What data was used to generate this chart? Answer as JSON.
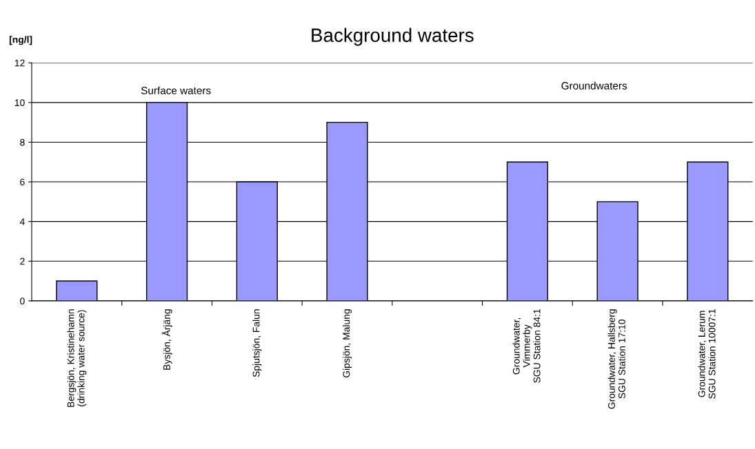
{
  "chart_data": {
    "type": "bar",
    "title": "Background waters",
    "ylabel": "[ng/l]",
    "categories": [
      "Bergsjön, Kristinehamn\n(drinking water source)",
      "Bysjön, Årjäng",
      "Spjutsjön, Falun",
      "Gipsjön, Malung",
      null,
      "Groundwater,\nVimmerby\nSGU Station 84:1",
      "Groundwater, Hallsberg\nSGU Station 17:10",
      "Groundwater, Lerum\nSGU Station 10007:1"
    ],
    "values": [
      1,
      10,
      6,
      9,
      null,
      7,
      5,
      7
    ],
    "color": "#9999ff",
    "annotations": [
      "Surface waters",
      "Groundwaters"
    ],
    "ylim": [
      0,
      12
    ],
    "yticks": [
      0,
      2,
      4,
      6,
      8,
      10,
      12
    ],
    "grid": "y",
    "legend": false
  }
}
